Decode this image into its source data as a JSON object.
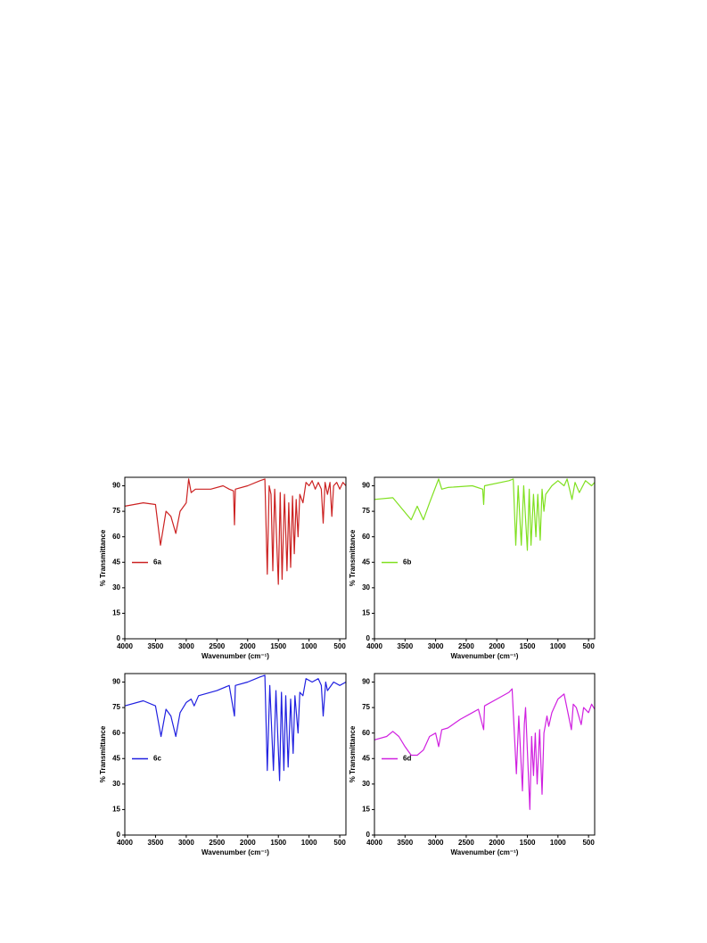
{
  "chart_data": [
    {
      "type": "line",
      "xlabel": "Wavenumber (cm⁻¹)",
      "ylabel": "% Transmittance",
      "xlim": [
        4000,
        400
      ],
      "ylim": [
        0,
        95
      ],
      "xticks": [
        4000,
        3500,
        3000,
        2500,
        2000,
        1500,
        1000,
        500
      ],
      "yticks": [
        0,
        15,
        30,
        45,
        60,
        75,
        90
      ],
      "legend": "center left",
      "x": [
        4000,
        3700,
        3500,
        3420,
        3330,
        3250,
        3170,
        3100,
        3000,
        2960,
        2920,
        2850,
        2600,
        2400,
        2300,
        2230,
        2215,
        2200,
        2000,
        1800,
        1720,
        1680,
        1650,
        1620,
        1590,
        1560,
        1500,
        1470,
        1440,
        1400,
        1360,
        1330,
        1300,
        1270,
        1240,
        1210,
        1180,
        1150,
        1100,
        1050,
        1000,
        950,
        900,
        850,
        800,
        770,
        740,
        700,
        660,
        630,
        600,
        550,
        500,
        450,
        400
      ],
      "series": [
        {
          "name": "6a",
          "color": "#cc2222",
          "values": [
            78,
            80,
            79,
            55,
            75,
            72,
            62,
            75,
            80,
            94,
            86,
            88,
            88,
            90,
            88,
            87,
            67,
            88,
            90,
            93,
            94,
            38,
            90,
            85,
            40,
            88,
            32,
            86,
            35,
            85,
            40,
            80,
            42,
            84,
            50,
            82,
            60,
            85,
            80,
            92,
            90,
            93,
            88,
            92,
            88,
            68,
            92,
            85,
            92,
            72,
            90,
            92,
            88,
            92,
            90
          ]
        }
      ]
    },
    {
      "type": "line",
      "xlabel": "Wavenumber (cm⁻¹)",
      "ylabel": "% Transmittance",
      "xlim": [
        4000,
        400
      ],
      "ylim": [
        0,
        95
      ],
      "xticks": [
        4000,
        3500,
        3000,
        2500,
        2000,
        1500,
        1000,
        500
      ],
      "yticks": [
        0,
        15,
        30,
        45,
        60,
        75,
        90
      ],
      "legend": "center left",
      "x": [
        4000,
        3700,
        3400,
        3300,
        3200,
        3100,
        2950,
        2900,
        2800,
        2400,
        2230,
        2215,
        2200,
        1800,
        1730,
        1690,
        1650,
        1600,
        1560,
        1500,
        1470,
        1440,
        1400,
        1360,
        1330,
        1290,
        1260,
        1230,
        1200,
        1100,
        1000,
        900,
        850,
        770,
        720,
        650,
        550,
        450,
        400
      ],
      "series": [
        {
          "name": "6b",
          "color": "#80e020",
          "values": [
            82,
            83,
            70,
            78,
            70,
            80,
            94,
            88,
            89,
            90,
            88,
            79,
            90,
            93,
            94,
            55,
            90,
            55,
            90,
            52,
            88,
            55,
            85,
            60,
            85,
            58,
            88,
            75,
            85,
            90,
            93,
            90,
            94,
            82,
            92,
            86,
            93,
            90,
            92
          ]
        }
      ]
    },
    {
      "type": "line",
      "xlabel": "Wavenumber (cm⁻¹)",
      "ylabel": "% Transmittance",
      "xlim": [
        4000,
        400
      ],
      "ylim": [
        0,
        95
      ],
      "xticks": [
        4000,
        3500,
        3000,
        2500,
        2000,
        1500,
        1000,
        500
      ],
      "yticks": [
        0,
        15,
        30,
        45,
        60,
        75,
        90
      ],
      "legend": "center left",
      "x": [
        4000,
        3700,
        3500,
        3410,
        3330,
        3250,
        3170,
        3100,
        3000,
        2920,
        2870,
        2800,
        2500,
        2300,
        2215,
        2200,
        2000,
        1800,
        1720,
        1680,
        1640,
        1580,
        1540,
        1480,
        1450,
        1410,
        1380,
        1340,
        1300,
        1260,
        1230,
        1180,
        1150,
        1100,
        1050,
        950,
        850,
        800,
        770,
        730,
        700,
        600,
        500,
        400
      ],
      "series": [
        {
          "name": "6c",
          "color": "#2020e0",
          "values": [
            76,
            79,
            76,
            58,
            74,
            70,
            58,
            72,
            78,
            80,
            76,
            82,
            85,
            88,
            70,
            88,
            90,
            93,
            94,
            38,
            88,
            38,
            85,
            32,
            84,
            38,
            82,
            40,
            80,
            48,
            82,
            60,
            84,
            82,
            92,
            90,
            92,
            88,
            70,
            90,
            85,
            90,
            88,
            90
          ]
        }
      ]
    },
    {
      "type": "line",
      "xlabel": "Wavenumber (cm⁻¹)",
      "ylabel": "% Transmittance",
      "xlim": [
        4000,
        400
      ],
      "ylim": [
        0,
        95
      ],
      "xticks": [
        4000,
        3500,
        3000,
        2500,
        2000,
        1500,
        1000,
        500
      ],
      "yticks": [
        0,
        15,
        30,
        45,
        60,
        75,
        90
      ],
      "legend": "center left",
      "x": [
        4000,
        3800,
        3700,
        3600,
        3500,
        3400,
        3300,
        3200,
        3100,
        3000,
        2950,
        2900,
        2800,
        2600,
        2400,
        2300,
        2215,
        2200,
        2000,
        1800,
        1750,
        1680,
        1640,
        1580,
        1550,
        1530,
        1460,
        1430,
        1400,
        1370,
        1340,
        1300,
        1260,
        1230,
        1180,
        1150,
        1100,
        1000,
        900,
        780,
        750,
        700,
        620,
        580,
        500,
        450,
        400
      ],
      "series": [
        {
          "name": "6d",
          "color": "#d020e0",
          "values": [
            56,
            58,
            61,
            58,
            52,
            47,
            47,
            50,
            58,
            60,
            52,
            62,
            63,
            68,
            72,
            74,
            62,
            76,
            80,
            84,
            86,
            36,
            70,
            26,
            65,
            75,
            15,
            58,
            35,
            60,
            30,
            62,
            24,
            60,
            70,
            64,
            72,
            80,
            83,
            62,
            77,
            75,
            65,
            75,
            72,
            77,
            74
          ]
        }
      ]
    }
  ]
}
